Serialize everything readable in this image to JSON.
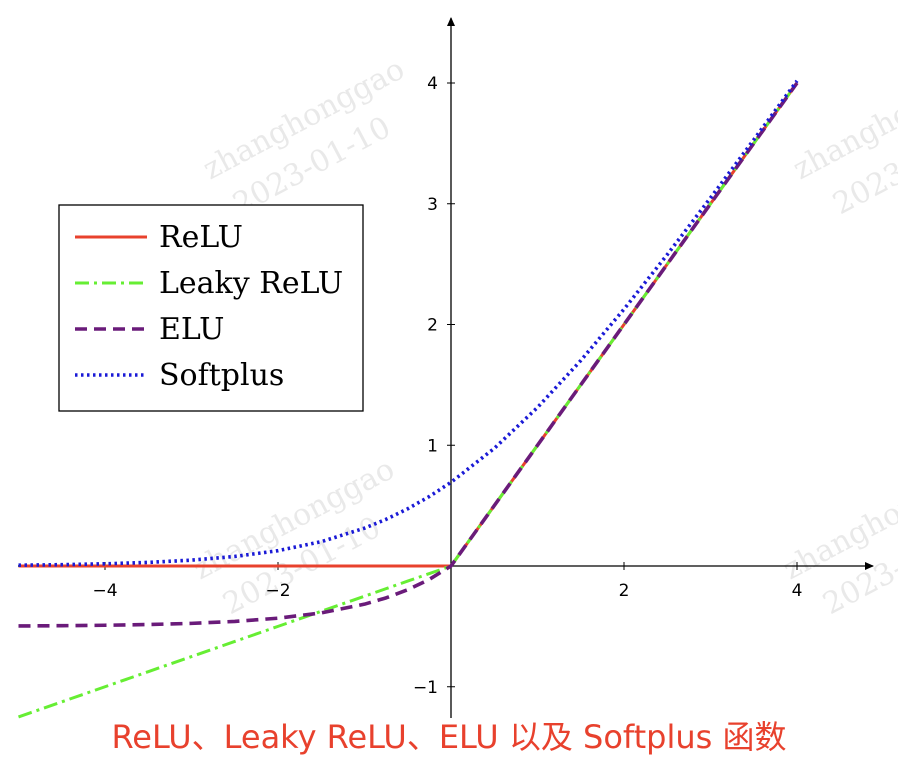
{
  "caption": "ReLU、Leaky ReLU、ELU 以及 Softplus 函数",
  "watermark": {
    "name": "zhanghonggao",
    "date": "2023-01-10"
  },
  "chart_data": {
    "type": "line",
    "xlim": [
      -5,
      4.7
    ],
    "ylim": [
      -1.25,
      4.5
    ],
    "xticks": [
      -4,
      -2,
      2,
      4
    ],
    "yticks": [
      -1,
      1,
      2,
      3,
      4
    ],
    "xtick_labels": [
      "−4",
      "−2",
      "2",
      "4"
    ],
    "ytick_labels": [
      "−1",
      "1",
      "2",
      "3",
      "4"
    ],
    "grid": false,
    "legend_position": "upper-left",
    "x": [
      -5,
      -4.5,
      -4,
      -3.5,
      -3,
      -2.5,
      -2,
      -1.5,
      -1,
      -0.75,
      -0.5,
      -0.25,
      0,
      0.5,
      1,
      1.5,
      2,
      2.5,
      3,
      3.5,
      4
    ],
    "series": [
      {
        "name": "ReLU",
        "color": "#e8412d",
        "dash": "solid",
        "values": [
          0,
          0,
          0,
          0,
          0,
          0,
          0,
          0,
          0,
          0,
          0,
          0,
          0,
          0.5,
          1,
          1.5,
          2,
          2.5,
          3,
          3.5,
          4
        ]
      },
      {
        "name": "Leaky ReLU",
        "color": "#66ee33",
        "dash": "dashdot",
        "values": [
          -1.25,
          -1.125,
          -1,
          -0.875,
          -0.75,
          -0.625,
          -0.5,
          -0.375,
          -0.25,
          -0.1875,
          -0.125,
          -0.0625,
          0,
          0.5,
          1,
          1.5,
          2,
          2.5,
          3,
          3.5,
          4
        ]
      },
      {
        "name": "ELU",
        "color": "#6a1b7a",
        "dash": "dashed",
        "values": [
          -0.4966,
          -0.4944,
          -0.4908,
          -0.4849,
          -0.4751,
          -0.459,
          -0.4323,
          -0.3884,
          -0.3161,
          -0.2638,
          -0.1967,
          -0.1106,
          0,
          0.5,
          1,
          1.5,
          2,
          2.5,
          3,
          3.5,
          4
        ]
      },
      {
        "name": "Softplus",
        "color": "#1a1ad6",
        "dash": "dotted",
        "values": [
          0.0067,
          0.0111,
          0.0181,
          0.0298,
          0.0486,
          0.0789,
          0.1269,
          0.2014,
          0.3133,
          0.3868,
          0.4741,
          0.5759,
          0.6931,
          0.9741,
          1.3133,
          1.7014,
          2.1269,
          2.5789,
          3.0486,
          3.5298,
          4.0181
        ]
      }
    ]
  }
}
